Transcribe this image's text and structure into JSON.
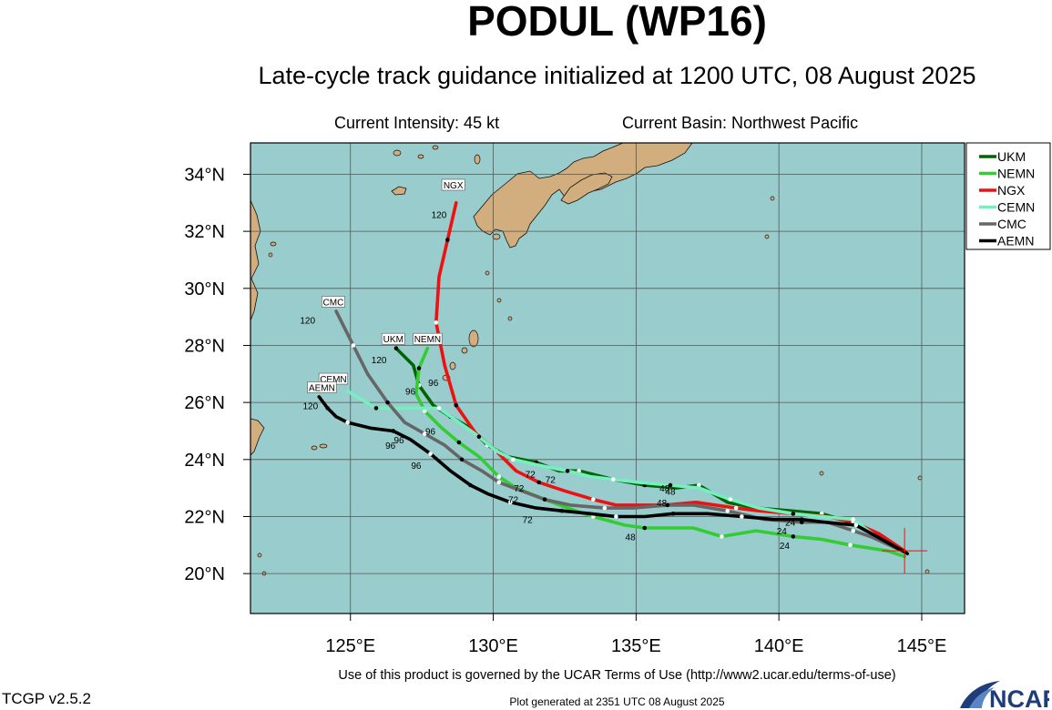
{
  "title": "PODUL (WP16)",
  "subtitle": "Late-cycle track guidance initialized at 1200 UTC, 08 August 2025",
  "current_intensity": "Current Intensity: 45 kt",
  "current_basin": "Current Basin: Northwest Pacific",
  "terms": "Use of this product is governed by the UCAR Terms of Use (http://www2.ucar.edu/terms-of-use)",
  "version": "TCGP v2.5.2",
  "generated": "Plot generated at 2351 UTC   08 August 2025",
  "ncar_logo_text": "NCAR",
  "colors": {
    "ocean": "#99cccc",
    "land": "#d2ad7d",
    "grid": "#555555",
    "UKM": "#006400",
    "NEMN": "#33cc33",
    "NGX": "#ee1111",
    "CEMN": "#77eec0",
    "CMC": "#666666",
    "AEMN": "#000000"
  },
  "map": {
    "lon_range": [
      121.5,
      146.5
    ],
    "lat_range": [
      18.6,
      35.1
    ],
    "lon_ticks": [
      "125°E",
      "130°E",
      "135°E",
      "140°E",
      "145°E"
    ],
    "lat_ticks": [
      "20°N",
      "22°N",
      "24°N",
      "26°N",
      "28°N",
      "30°N",
      "32°N",
      "34°N"
    ]
  },
  "initial_position": {
    "lon": 144.4,
    "lat": 20.8
  },
  "models": [
    {
      "name": "UKM",
      "points": [
        [
          144.4,
          20.8
        ],
        [
          142.5,
          21.8
        ],
        [
          141.5,
          22.1
        ],
        [
          140.4,
          22.2
        ],
        [
          139.2,
          22.3
        ],
        [
          138.2,
          22.5
        ],
        [
          137.2,
          23.1
        ],
        [
          136.4,
          23.0
        ],
        [
          135.3,
          23.1
        ],
        [
          134.2,
          23.3
        ],
        [
          133.0,
          23.6
        ],
        [
          132.3,
          23.6
        ],
        [
          131.5,
          23.9
        ],
        [
          130.5,
          24.1
        ],
        [
          129.8,
          24.5
        ],
        [
          129.2,
          25.1
        ],
        [
          128.5,
          25.5
        ],
        [
          127.9,
          25.9
        ],
        [
          127.4,
          26.6
        ],
        [
          127.2,
          27.3
        ],
        [
          126.6,
          27.9
        ]
      ],
      "hours": [
        {
          "h": "48",
          "lon": 136.2,
          "lat": 22.9
        },
        {
          "h": "96",
          "lon": 127.1,
          "lat": 26.4
        },
        {
          "h": "120",
          "lon": 126.0,
          "lat": 27.5
        }
      ],
      "label_at": [
        126.5,
        28.2
      ]
    },
    {
      "name": "NEMN",
      "points": [
        [
          144.4,
          20.6
        ],
        [
          143.8,
          20.8
        ],
        [
          142.5,
          21.0
        ],
        [
          141.5,
          21.2
        ],
        [
          140.5,
          21.3
        ],
        [
          139.2,
          21.5
        ],
        [
          138.0,
          21.3
        ],
        [
          137.0,
          21.6
        ],
        [
          135.3,
          21.6
        ],
        [
          134.6,
          21.7
        ],
        [
          133.5,
          22.0
        ],
        [
          132.6,
          22.3
        ],
        [
          131.8,
          22.6
        ],
        [
          130.8,
          23.0
        ],
        [
          130.2,
          23.4
        ],
        [
          129.5,
          24.1
        ],
        [
          128.8,
          24.6
        ],
        [
          128.2,
          25.1
        ],
        [
          127.6,
          25.7
        ],
        [
          127.3,
          26.3
        ],
        [
          127.4,
          27.2
        ],
        [
          127.7,
          27.9
        ]
      ],
      "hours": [
        {
          "h": "24",
          "lon": 140.2,
          "lat": 21.0
        },
        {
          "h": "48",
          "lon": 134.8,
          "lat": 21.3
        },
        {
          "h": "72",
          "lon": 130.9,
          "lat": 23.0
        },
        {
          "h": "96",
          "lon": 127.8,
          "lat": 25.0
        }
      ],
      "label_at": [
        127.7,
        28.2
      ]
    },
    {
      "name": "NGX",
      "points": [
        [
          144.4,
          20.8
        ],
        [
          143.5,
          21.4
        ],
        [
          142.6,
          21.8
        ],
        [
          141.7,
          22.0
        ],
        [
          140.5,
          22.1
        ],
        [
          139.3,
          22.2
        ],
        [
          138.5,
          22.3
        ],
        [
          137.1,
          22.5
        ],
        [
          136.0,
          22.4
        ],
        [
          134.3,
          22.4
        ],
        [
          133.5,
          22.6
        ],
        [
          132.5,
          22.9
        ],
        [
          131.6,
          23.2
        ],
        [
          130.8,
          23.6
        ],
        [
          130.1,
          24.3
        ],
        [
          129.4,
          24.9
        ],
        [
          128.7,
          25.9
        ],
        [
          128.3,
          27.3
        ],
        [
          128.0,
          28.8
        ],
        [
          128.1,
          30.4
        ],
        [
          128.4,
          31.7
        ],
        [
          128.7,
          33.0
        ]
      ],
      "hours": [
        {
          "h": "48",
          "lon": 135.9,
          "lat": 22.5
        },
        {
          "h": "72",
          "lon": 131.3,
          "lat": 23.5
        },
        {
          "h": "72",
          "lon": 132.0,
          "lat": 23.3
        },
        {
          "h": "96",
          "lon": 127.9,
          "lat": 26.7
        },
        {
          "h": "120",
          "lon": 128.1,
          "lat": 32.6
        }
      ],
      "label_at": [
        128.6,
        33.6
      ]
    },
    {
      "name": "CEMN",
      "points": [
        [
          144.3,
          20.8
        ],
        [
          143.4,
          21.3
        ],
        [
          142.6,
          21.9
        ],
        [
          141.5,
          22.0
        ],
        [
          140.5,
          22.1
        ],
        [
          139.3,
          22.3
        ],
        [
          138.3,
          22.6
        ],
        [
          137.2,
          23.0
        ],
        [
          136.2,
          23.1
        ],
        [
          135.1,
          23.2
        ],
        [
          134.2,
          23.3
        ],
        [
          133.4,
          23.4
        ],
        [
          132.6,
          23.6
        ],
        [
          131.6,
          23.8
        ],
        [
          130.7,
          24.0
        ],
        [
          130.1,
          24.3
        ],
        [
          129.5,
          24.8
        ],
        [
          128.8,
          25.3
        ],
        [
          128.1,
          25.8
        ],
        [
          126.8,
          25.8
        ],
        [
          125.9,
          25.8
        ],
        [
          124.9,
          26.4
        ]
      ],
      "hours": [
        {
          "h": "48",
          "lon": 136.0,
          "lat": 23.0
        }
      ],
      "label_at": [
        124.4,
        26.8
      ]
    },
    {
      "name": "CMC",
      "points": [
        [
          144.3,
          20.8
        ],
        [
          143.2,
          21.3
        ],
        [
          142.6,
          21.5
        ],
        [
          141.7,
          21.8
        ],
        [
          140.8,
          21.8
        ],
        [
          139.5,
          21.9
        ],
        [
          138.2,
          22.2
        ],
        [
          137.0,
          22.4
        ],
        [
          136.1,
          22.4
        ],
        [
          134.9,
          22.3
        ],
        [
          133.9,
          22.3
        ],
        [
          132.7,
          22.4
        ],
        [
          131.8,
          22.6
        ],
        [
          131.0,
          22.9
        ],
        [
          130.2,
          23.2
        ],
        [
          129.6,
          23.6
        ],
        [
          128.9,
          24.0
        ],
        [
          128.3,
          24.5
        ],
        [
          127.6,
          24.9
        ],
        [
          126.9,
          25.3
        ],
        [
          126.3,
          26.0
        ],
        [
          125.6,
          27.0
        ],
        [
          125.1,
          28.0
        ],
        [
          124.5,
          29.2
        ]
      ],
      "hours": [
        {
          "h": "24",
          "lon": 140.1,
          "lat": 21.5
        },
        {
          "h": "72",
          "lon": 130.7,
          "lat": 22.6
        },
        {
          "h": "96",
          "lon": 126.4,
          "lat": 24.5
        },
        {
          "h": "120",
          "lon": 123.5,
          "lat": 28.9
        }
      ],
      "label_at": [
        124.4,
        29.5
      ]
    },
    {
      "name": "AEMN",
      "points": [
        [
          144.5,
          20.7
        ],
        [
          143.6,
          21.2
        ],
        [
          142.7,
          21.7
        ],
        [
          141.6,
          21.8
        ],
        [
          140.8,
          21.9
        ],
        [
          139.8,
          21.9
        ],
        [
          138.7,
          22.0
        ],
        [
          137.5,
          22.1
        ],
        [
          136.3,
          22.1
        ],
        [
          135.3,
          22.0
        ],
        [
          134.3,
          22.0
        ],
        [
          133.4,
          22.1
        ],
        [
          132.4,
          22.2
        ],
        [
          131.5,
          22.3
        ],
        [
          130.6,
          22.5
        ],
        [
          129.8,
          22.8
        ],
        [
          129.2,
          23.1
        ],
        [
          128.5,
          23.6
        ],
        [
          127.8,
          24.2
        ],
        [
          127.1,
          24.7
        ],
        [
          126.5,
          25.0
        ],
        [
          125.7,
          25.1
        ],
        [
          124.9,
          25.3
        ],
        [
          124.5,
          25.5
        ],
        [
          124.2,
          25.8
        ],
        [
          123.9,
          26.2
        ]
      ],
      "hours": [
        {
          "h": "24",
          "lon": 140.4,
          "lat": 21.8
        },
        {
          "h": "72",
          "lon": 131.2,
          "lat": 21.9
        },
        {
          "h": "96",
          "lon": 126.7,
          "lat": 24.7
        },
        {
          "h": "96",
          "lon": 127.3,
          "lat": 23.8
        },
        {
          "h": "120",
          "lon": 123.6,
          "lat": 25.9
        }
      ],
      "label_at": [
        124.0,
        26.5
      ]
    }
  ],
  "legend": [
    "UKM",
    "NEMN",
    "NGX",
    "CEMN",
    "CMC",
    "AEMN"
  ]
}
